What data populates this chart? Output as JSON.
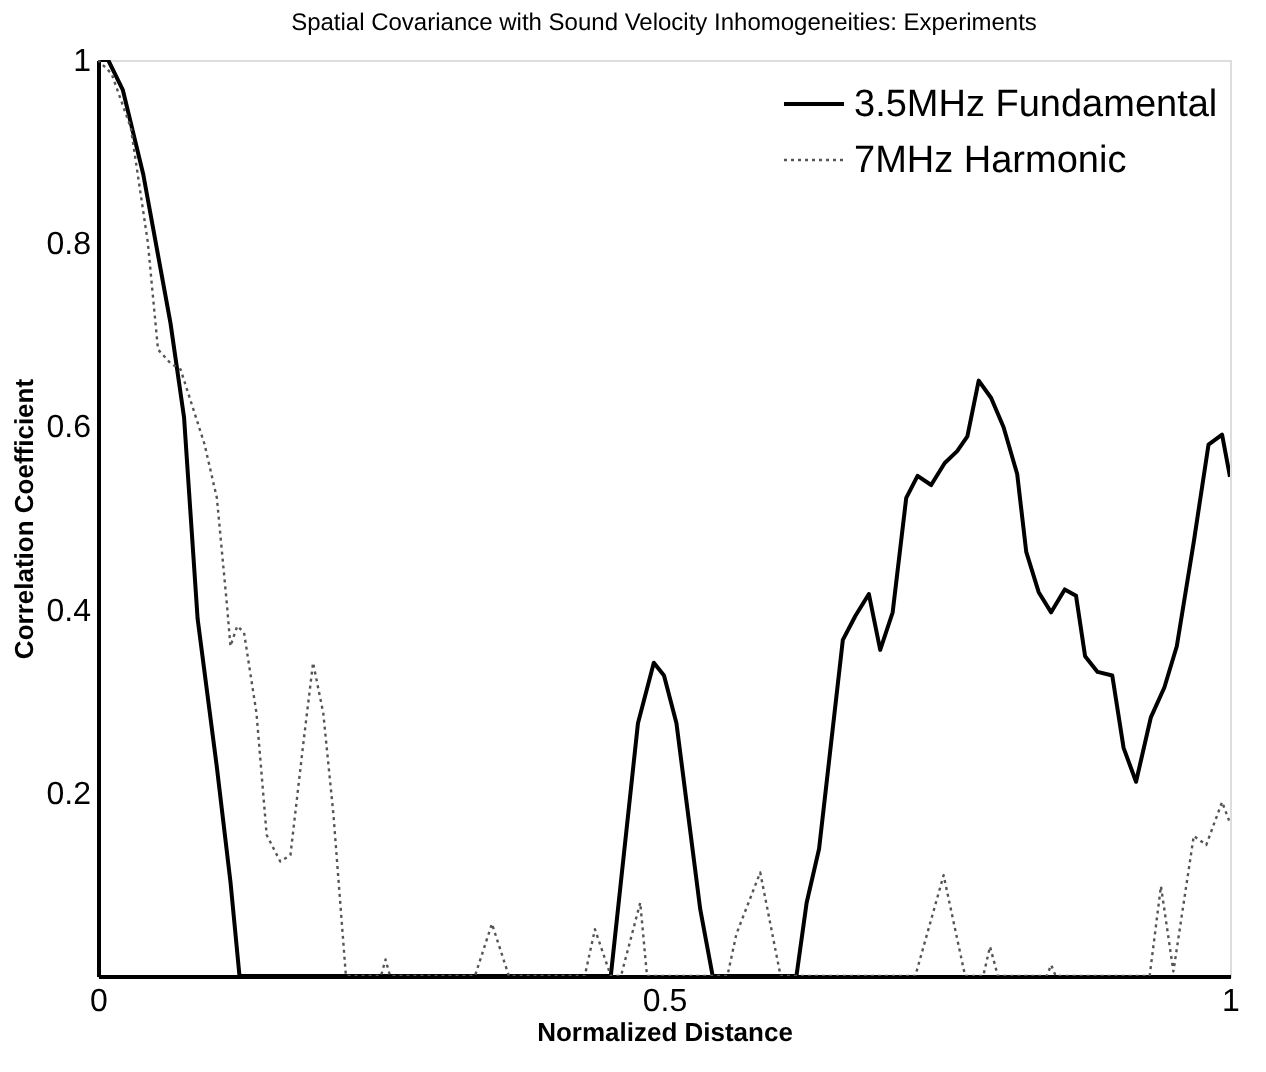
{
  "chart_data": {
    "type": "line",
    "title": "Spatial Covariance with Sound Velocity Inhomogeneities: Experiments",
    "xlabel": "Normalized Distance",
    "ylabel": "Correlation Coefficient",
    "xlim": [
      0,
      1
    ],
    "ylim": [
      0,
      1
    ],
    "xticks": [
      0,
      0.5,
      1
    ],
    "yticks": [
      0.2,
      0.4,
      0.6,
      0.8,
      1
    ],
    "grid": false,
    "legend": "top right",
    "marker": "none",
    "series": [
      {
        "name": "3.5MHz Fundamental",
        "color": "#000000",
        "line_style": "solid",
        "x": [
          0,
          0.009,
          0.022,
          0.04,
          0.064,
          0.076,
          0.088,
          0.105,
          0.117,
          0.125,
          0.453,
          0.477,
          0.491,
          0.5,
          0.511,
          0.532,
          0.543,
          0.617,
          0.626,
          0.637,
          0.658,
          0.669,
          0.681,
          0.691,
          0.702,
          0.714,
          0.724,
          0.736,
          0.748,
          0.759,
          0.768,
          0.778,
          0.789,
          0.8,
          0.812,
          0.82,
          0.831,
          0.842,
          0.854,
          0.864,
          0.872,
          0.883,
          0.896,
          0.906,
          0.917,
          0.93,
          0.942,
          0.953,
          0.968,
          0.981,
          0.993,
          1.0
        ],
        "values": [
          1.0,
          1.0,
          0.967,
          0.875,
          0.713,
          0.61,
          0.39,
          0.228,
          0.103,
          0,
          0,
          0.276,
          0.342,
          0.328,
          0.276,
          0.073,
          0,
          0,
          0.08,
          0.139,
          0.367,
          0.393,
          0.417,
          0.356,
          0.397,
          0.522,
          0.546,
          0.536,
          0.56,
          0.573,
          0.589,
          0.65,
          0.631,
          0.599,
          0.548,
          0.463,
          0.419,
          0.397,
          0.422,
          0.415,
          0.349,
          0.332,
          0.328,
          0.249,
          0.212,
          0.282,
          0.315,
          0.36,
          0.474,
          0.58,
          0.591,
          0.545
        ]
      },
      {
        "name": "7MHz Harmonic",
        "color": "#555555",
        "line_style": "dotted",
        "x": [
          0,
          0.012,
          0.029,
          0.044,
          0.053,
          0.064,
          0.073,
          0.094,
          0.105,
          0.114,
          0.117,
          0.123,
          0.129,
          0.14,
          0.149,
          0.161,
          0.17,
          0.181,
          0.19,
          0.199,
          0.208,
          0.213,
          0.219,
          0.25,
          0.254,
          0.258,
          0.333,
          0.348,
          0.363,
          0.43,
          0.439,
          0.453,
          0.462,
          0.479,
          0.485,
          0.556,
          0.564,
          0.585,
          0.603,
          0.722,
          0.747,
          0.766,
          0.782,
          0.788,
          0.795,
          0.838,
          0.842,
          0.846,
          0.929,
          0.939,
          0.95,
          0.968,
          0.979,
          0.993,
          1.0
        ],
        "values": [
          1.0,
          0.985,
          0.926,
          0.801,
          0.684,
          0.669,
          0.662,
          0.581,
          0.522,
          0.404,
          0.36,
          0.382,
          0.375,
          0.287,
          0.154,
          0.125,
          0.132,
          0.25,
          0.342,
          0.287,
          0.176,
          0.096,
          0,
          0,
          0.018,
          0,
          0,
          0.057,
          0,
          0,
          0.051,
          0,
          0,
          0.08,
          0,
          0,
          0.046,
          0.113,
          0,
          0,
          0.11,
          0,
          0,
          0.032,
          0,
          0,
          0.012,
          0,
          0,
          0.098,
          0.005,
          0.153,
          0.143,
          0.19,
          0.167
        ]
      }
    ]
  }
}
